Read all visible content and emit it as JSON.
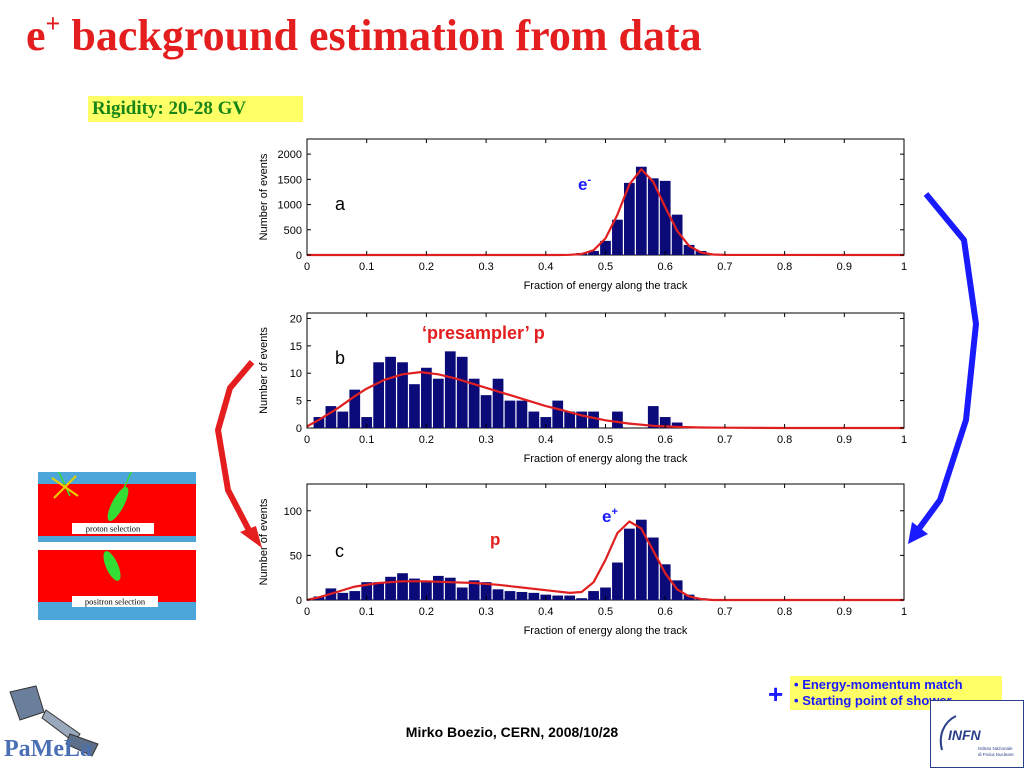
{
  "title": {
    "base": "e",
    "sup": "+",
    "rest": " background estimation from data"
  },
  "rigidity_label": "Rigidity: 20-28 GV",
  "annotations": {
    "electron": {
      "base": "e",
      "sup": "-",
      "color": "#1a1aff"
    },
    "presampler": {
      "text": "‘presampler’ p",
      "color": "#e41e1e"
    },
    "positron": {
      "base": "e",
      "sup": "+",
      "color": "#1a1aff"
    },
    "proton": {
      "text": "p",
      "color": "#e41e1e"
    }
  },
  "detector_sketch": {
    "proton_selection_label": "proton  selection",
    "positron_selection_label": "positron selection",
    "colors": {
      "band": "#ff0000",
      "edge": "#4da6d9",
      "track": "#33dd33",
      "veto": "#e8d000"
    }
  },
  "cuts": {
    "plus_sign": "+",
    "items": [
      "Energy-momentum match",
      "Starting point of shower"
    ],
    "bullet": "•"
  },
  "footer": "Mirko Boezio, CERN, 2008/10/28",
  "logos": {
    "left": "PaMeLa",
    "right": "INFN",
    "right_sub1": "Istituto Nazionale",
    "right_sub2": "di Fisica Nucleare"
  },
  "chart_data": [
    {
      "type": "bar",
      "panel_label": "a",
      "xlabel": "Fraction of energy along the track",
      "ylabel": "Number of events",
      "xlim": [
        0,
        1
      ],
      "ylim": [
        0,
        2300
      ],
      "xticks": [
        0,
        0.1,
        0.2,
        0.3,
        0.4,
        0.5,
        0.6,
        0.7,
        0.8,
        0.9,
        1
      ],
      "xtick_labels": [
        "0",
        "0.1",
        "0.2",
        "0.3",
        "0.4",
        "0.5",
        "0.6",
        "0.7",
        "0.8",
        "0.9",
        "1"
      ],
      "yticks": [
        0,
        500,
        1000,
        1500,
        2000
      ],
      "ytick_labels": [
        "0",
        "500",
        "1000",
        "1500",
        "2000"
      ],
      "bin_width": 0.02,
      "bar_color": "#0a0a78",
      "fit_color": "#e02020",
      "bins": [
        [
          0.46,
          40
        ],
        [
          0.48,
          80
        ],
        [
          0.5,
          280
        ],
        [
          0.52,
          700
        ],
        [
          0.54,
          1430
        ],
        [
          0.56,
          1750
        ],
        [
          0.58,
          1520
        ],
        [
          0.6,
          1470
        ],
        [
          0.62,
          800
        ],
        [
          0.64,
          200
        ],
        [
          0.66,
          80
        ],
        [
          0.68,
          20
        ]
      ],
      "fit_x": [
        0.0,
        0.42,
        0.44,
        0.46,
        0.48,
        0.5,
        0.52,
        0.54,
        0.56,
        0.58,
        0.6,
        0.62,
        0.64,
        0.66,
        0.68,
        0.7,
        1.0
      ],
      "fit_y": [
        0,
        0,
        3,
        20,
        95,
        330,
        800,
        1400,
        1700,
        1450,
        950,
        480,
        180,
        50,
        10,
        2,
        0
      ]
    },
    {
      "type": "bar",
      "panel_label": "b",
      "xlabel": "Fraction of energy along the track",
      "ylabel": "Number of events",
      "xlim": [
        0,
        1
      ],
      "ylim": [
        0,
        21
      ],
      "xticks": [
        0,
        0.1,
        0.2,
        0.3,
        0.4,
        0.5,
        0.6,
        0.7,
        0.8,
        0.9,
        1
      ],
      "xtick_labels": [
        "0",
        "0.1",
        "0.2",
        "0.3",
        "0.4",
        "0.5",
        "0.6",
        "0.7",
        "0.8",
        "0.9",
        "1"
      ],
      "yticks": [
        0,
        5,
        10,
        15,
        20
      ],
      "ytick_labels": [
        "0",
        "5",
        "10",
        "15",
        "20"
      ],
      "bin_width": 0.02,
      "bar_color": "#0a0a78",
      "fit_color": "#e02020",
      "bins": [
        [
          0.02,
          2
        ],
        [
          0.04,
          4
        ],
        [
          0.06,
          3
        ],
        [
          0.08,
          7
        ],
        [
          0.1,
          2
        ],
        [
          0.12,
          12
        ],
        [
          0.14,
          13
        ],
        [
          0.16,
          12
        ],
        [
          0.18,
          8
        ],
        [
          0.2,
          11
        ],
        [
          0.22,
          9
        ],
        [
          0.24,
          14
        ],
        [
          0.26,
          13
        ],
        [
          0.28,
          9
        ],
        [
          0.3,
          6
        ],
        [
          0.32,
          9
        ],
        [
          0.34,
          5
        ],
        [
          0.36,
          5
        ],
        [
          0.38,
          3
        ],
        [
          0.4,
          2
        ],
        [
          0.42,
          5
        ],
        [
          0.44,
          3
        ],
        [
          0.46,
          3
        ],
        [
          0.48,
          3
        ],
        [
          0.52,
          3
        ],
        [
          0.58,
          4
        ],
        [
          0.6,
          2
        ],
        [
          0.62,
          1
        ]
      ],
      "fit_x": [
        0.0,
        0.02,
        0.05,
        0.08,
        0.1,
        0.13,
        0.16,
        0.19,
        0.22,
        0.25,
        0.28,
        0.31,
        0.34,
        0.37,
        0.4,
        0.43,
        0.46,
        0.5,
        0.54,
        0.58,
        0.62,
        0.66,
        0.7,
        0.8,
        0.9,
        1.0
      ],
      "fit_y": [
        0.3,
        1.5,
        3.5,
        5.8,
        7.2,
        8.8,
        9.8,
        10.2,
        9.8,
        9.0,
        8.0,
        7.0,
        6.0,
        5.0,
        4.0,
        3.2,
        2.3,
        1.4,
        0.8,
        0.4,
        0.2,
        0.1,
        0.05,
        0,
        0,
        0
      ]
    },
    {
      "type": "bar",
      "panel_label": "c",
      "xlabel": "Fraction of energy along the track",
      "ylabel": "Number of events",
      "xlim": [
        0,
        1
      ],
      "ylim": [
        0,
        130
      ],
      "xticks": [
        0,
        0.1,
        0.2,
        0.3,
        0.4,
        0.5,
        0.6,
        0.7,
        0.8,
        0.9,
        1
      ],
      "xtick_labels": [
        "0",
        "0.1",
        "0.2",
        "0.3",
        "0.4",
        "0.5",
        "0.6",
        "0.7",
        "0.8",
        "0.9",
        "1"
      ],
      "yticks": [
        0,
        50,
        100
      ],
      "ytick_labels": [
        "0",
        "50",
        "100"
      ],
      "bin_width": 0.02,
      "bar_color": "#0a0a78",
      "fit_color": "#e02020",
      "bins": [
        [
          0.02,
          4
        ],
        [
          0.04,
          13
        ],
        [
          0.06,
          8
        ],
        [
          0.08,
          10
        ],
        [
          0.1,
          20
        ],
        [
          0.12,
          20
        ],
        [
          0.14,
          26
        ],
        [
          0.16,
          30
        ],
        [
          0.18,
          24
        ],
        [
          0.2,
          20
        ],
        [
          0.22,
          27
        ],
        [
          0.24,
          25
        ],
        [
          0.26,
          14
        ],
        [
          0.28,
          22
        ],
        [
          0.3,
          20
        ],
        [
          0.32,
          12
        ],
        [
          0.34,
          10
        ],
        [
          0.36,
          9
        ],
        [
          0.38,
          8
        ],
        [
          0.4,
          6
        ],
        [
          0.42,
          5
        ],
        [
          0.44,
          5
        ],
        [
          0.46,
          2
        ],
        [
          0.48,
          10
        ],
        [
          0.5,
          14
        ],
        [
          0.52,
          42
        ],
        [
          0.54,
          80
        ],
        [
          0.56,
          90
        ],
        [
          0.58,
          70
        ],
        [
          0.6,
          40
        ],
        [
          0.62,
          22
        ],
        [
          0.64,
          6
        ],
        [
          0.66,
          2
        ]
      ],
      "fit_x": [
        0.0,
        0.02,
        0.05,
        0.08,
        0.12,
        0.16,
        0.2,
        0.24,
        0.28,
        0.32,
        0.36,
        0.4,
        0.44,
        0.46,
        0.48,
        0.5,
        0.52,
        0.54,
        0.56,
        0.58,
        0.6,
        0.62,
        0.64,
        0.66,
        0.68,
        0.7,
        0.8,
        1.0
      ],
      "fit_y": [
        0,
        3,
        9,
        15,
        19,
        21,
        21,
        20,
        19,
        17,
        14,
        11,
        8,
        9,
        20,
        45,
        75,
        88,
        80,
        55,
        30,
        12,
        4,
        1,
        0,
        0,
        0,
        0
      ]
    }
  ]
}
